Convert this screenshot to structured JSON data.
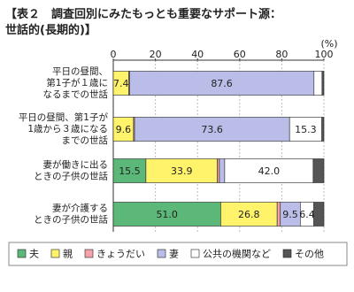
{
  "chart_data": {
    "type": "stacked-barh",
    "title": "【表２　調査回別にみたもっとも重要なサポート源：\n世話的(長期的)】",
    "unit": "(%)",
    "categories": [
      "平日の昼間、\n第1子が１歳に\nなるまでの世話",
      "平日の昼間、第1子が\n1歳から３歳になる\nまでの世話",
      "妻が働きに出る\nときの子供の世話",
      "妻が介護する\nときの子供の世話"
    ],
    "series": [
      {
        "name": "夫",
        "color": "#5cb878",
        "values": [
          0,
          0,
          15.5,
          51.0
        ],
        "value_labels": [
          null,
          null,
          "15.5",
          "51.0"
        ]
      },
      {
        "name": "親",
        "color": "#fff36b",
        "values": [
          7.4,
          9.6,
          33.9,
          26.8
        ],
        "value_labels": [
          "7.4",
          "9.6",
          "33.9",
          "26.8"
        ]
      },
      {
        "name": "きょうだい",
        "color": "#f4a3ab",
        "values": [
          0.3,
          0.5,
          1.0,
          1.5
        ],
        "value_labels": [
          null,
          null,
          null,
          null
        ]
      },
      {
        "name": "妻",
        "color": "#b9bde8",
        "values": [
          87.6,
          73.6,
          2.5,
          9.5
        ],
        "value_labels": [
          "87.6",
          "73.6",
          null,
          "9.5"
        ]
      },
      {
        "name": "公共の機関など",
        "color": "#ffffff",
        "values": [
          3.8,
          15.3,
          42.0,
          6.4
        ],
        "value_labels": [
          null,
          "15.3",
          "42.0",
          "6.4"
        ]
      },
      {
        "name": "その他",
        "color": "#555555",
        "values": [
          0.9,
          1.0,
          5.1,
          4.8
        ],
        "value_labels": [
          null,
          null,
          null,
          null
        ]
      }
    ],
    "xlim": [
      0,
      100
    ],
    "xticks": [
      0,
      20,
      40,
      60,
      80,
      100
    ],
    "grid": true
  }
}
